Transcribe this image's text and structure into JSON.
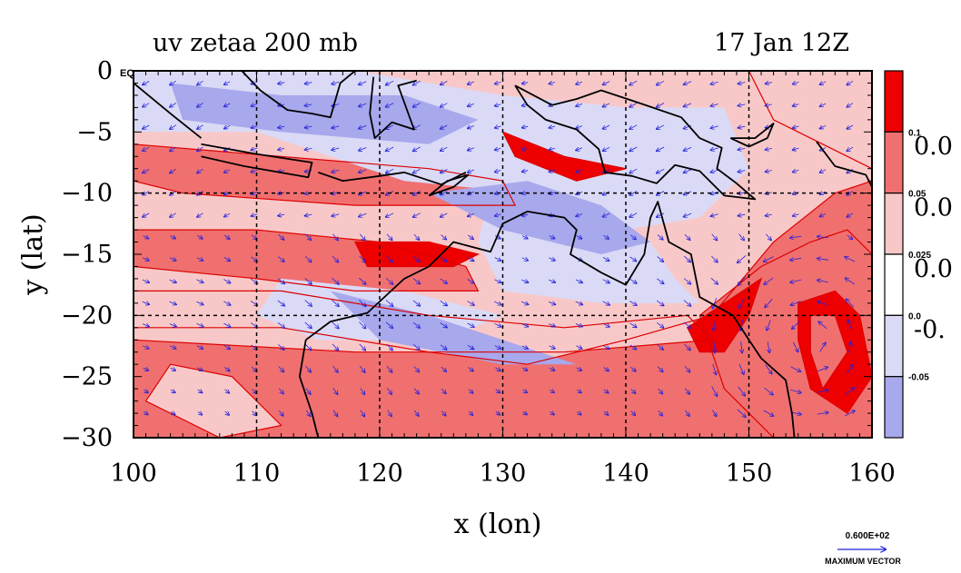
{
  "chart_data": {
    "type": "heatmap",
    "title_left": "uv zetaa 200 mb",
    "title_right": "17 Jan 12Z",
    "xlabel": "x (lon)",
    "ylabel": "y (lat)",
    "xlim": [
      100,
      160
    ],
    "ylim": [
      -30,
      0
    ],
    "x_ticks": [
      {
        "value": 100,
        "label": "100"
      },
      {
        "value": 110,
        "label": "110"
      },
      {
        "value": 120,
        "label": "120"
      },
      {
        "value": 130,
        "label": "130"
      },
      {
        "value": 140,
        "label": "140"
      },
      {
        "value": 150,
        "label": "150"
      },
      {
        "value": 160,
        "label": "160"
      }
    ],
    "y_ticks": [
      {
        "value": 0,
        "label": "0"
      },
      {
        "value": -5,
        "label": "−5"
      },
      {
        "value": -10,
        "label": "−10"
      },
      {
        "value": -15,
        "label": "−15"
      },
      {
        "value": -20,
        "label": "−20"
      },
      {
        "value": -25,
        "label": "−25"
      },
      {
        "value": -30,
        "label": "−30"
      }
    ],
    "y_extra_label": "EQ",
    "grid_lon": [
      110,
      120,
      130,
      140,
      150
    ],
    "grid_lat": [
      -10,
      -20
    ],
    "colorbar": {
      "colors": [
        "#ee0000",
        "#f07070",
        "#f8c8c8",
        "#ffffff",
        "#dadaf6",
        "#a8a8ec"
      ],
      "small_labels": [
        "0.1",
        "0.05",
        "0.025",
        "0.0",
        "-0.05"
      ],
      "large_labels": [
        "0.0",
        "0.0",
        "0.0",
        "-0."
      ]
    },
    "vector_reference": {
      "value_label": "0.600E+02",
      "caption": "MAXIMUM VECTOR",
      "color": "#2222dd"
    },
    "field_colors": {
      "strong_positive": "#ee0000",
      "positive": "#f07070",
      "weak_positive": "#f8c8c8",
      "weak_negative": "#dadaf6",
      "negative": "#a8a8ec",
      "contour": "#dd0000",
      "coast": "#000000",
      "vectors": "#2222dd"
    }
  }
}
